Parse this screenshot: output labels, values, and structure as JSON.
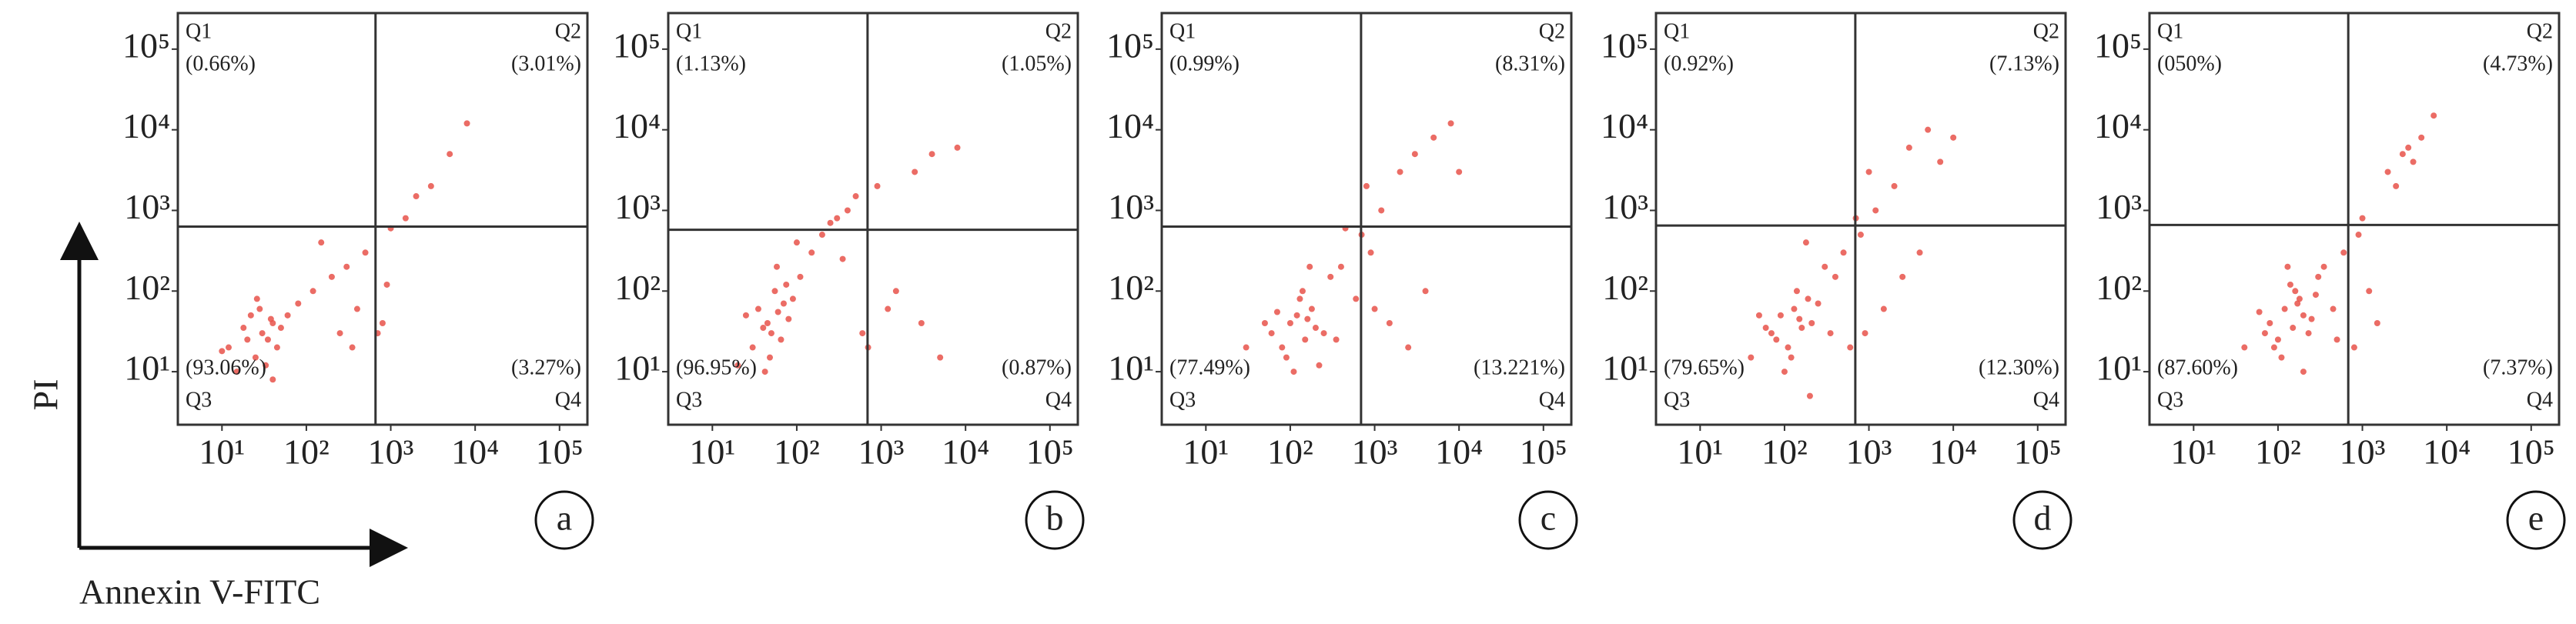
{
  "chart_data": [
    {
      "type": "scatter",
      "panel_label": "a",
      "ylabel": "PI",
      "xlabel": "Annexin V-FITC",
      "color": "#e8524a",
      "log_x": true,
      "log_y": true,
      "xlim": [
        3,
        214000
      ],
      "ylim": [
        2.2,
        280000
      ],
      "xticks": [
        {
          "value": 10,
          "label": "10¹"
        },
        {
          "value": 100,
          "label": "10²"
        },
        {
          "value": 1000,
          "label": "10³"
        },
        {
          "value": 10000,
          "label": "10⁴"
        },
        {
          "value": 100000,
          "label": "10⁵"
        }
      ],
      "yticks": [
        {
          "value": 10,
          "label": "10¹"
        },
        {
          "value": 100,
          "label": "10²"
        },
        {
          "value": 1000,
          "label": "10³"
        },
        {
          "value": 10000,
          "label": "10⁴"
        },
        {
          "value": 100000,
          "label": "10⁵"
        }
      ],
      "gate": [
        660,
        630
      ],
      "quadrants": [
        {
          "name": "Q1",
          "label": "(0.66%)"
        },
        {
          "name": "Q2",
          "label": "(3.01%)"
        },
        {
          "name": "Q3",
          "label": "(93.06%)"
        },
        {
          "name": "Q4",
          "label": "(3.27%)"
        }
      ],
      "x": [
        12,
        18,
        25,
        30,
        35,
        40,
        22,
        15,
        28,
        45,
        50,
        20,
        33,
        38,
        26,
        60,
        80,
        120,
        200,
        300,
        500,
        900,
        1500,
        3000,
        5000,
        800,
        250,
        150,
        40,
        10,
        700,
        2000,
        400,
        1000,
        8000,
        350
      ],
      "y": [
        20,
        35,
        15,
        30,
        25,
        40,
        50,
        10,
        60,
        20,
        35,
        25,
        12,
        45,
        80,
        50,
        70,
        100,
        150,
        200,
        300,
        120,
        800,
        2000,
        5000,
        40,
        30,
        400,
        8,
        18,
        30,
        1500,
        60,
        600,
        12000,
        20
      ]
    },
    {
      "type": "scatter",
      "panel_label": "b",
      "color": "#e8524a",
      "log_x": true,
      "log_y": true,
      "xlim": [
        3,
        214000
      ],
      "ylim": [
        2.2,
        280000
      ],
      "xticks": [
        {
          "value": 10,
          "label": "10¹"
        },
        {
          "value": 100,
          "label": "10²"
        },
        {
          "value": 1000,
          "label": "10³"
        },
        {
          "value": 10000,
          "label": "10⁴"
        },
        {
          "value": 100000,
          "label": "10⁵"
        }
      ],
      "yticks": [
        {
          "value": 10,
          "label": "10¹"
        },
        {
          "value": 100,
          "label": "10²"
        },
        {
          "value": 1000,
          "label": "10³"
        },
        {
          "value": 10000,
          "label": "10⁴"
        },
        {
          "value": 100000,
          "label": "10⁵"
        }
      ],
      "gate": [
        690,
        575
      ],
      "quadrants": [
        {
          "name": "Q1",
          "label": "(1.13%)"
        },
        {
          "name": "Q2",
          "label": "(1.05%)"
        },
        {
          "name": "Q3",
          "label": "(96.95%)"
        },
        {
          "name": "Q4",
          "label": "(0.87%)"
        }
      ],
      "x": [
        30,
        45,
        60,
        50,
        70,
        55,
        40,
        80,
        65,
        35,
        90,
        48,
        75,
        58,
        42,
        110,
        150,
        200,
        300,
        400,
        500,
        1200,
        2500,
        4000,
        8000,
        600,
        3000,
        1500,
        25,
        20,
        700,
        900,
        250,
        100,
        5000,
        350
      ],
      "y": [
        20,
        40,
        55,
        30,
        70,
        100,
        35,
        45,
        25,
        60,
        80,
        15,
        120,
        200,
        10,
        150,
        300,
        500,
        800,
        1000,
        1500,
        60,
        3000,
        5000,
        6000,
        30,
        40,
        100,
        50,
        12,
        20,
        2000,
        700,
        400,
        15,
        250
      ]
    },
    {
      "type": "scatter",
      "panel_label": "c",
      "color": "#e8524a",
      "log_x": true,
      "log_y": true,
      "xlim": [
        3,
        214000
      ],
      "ylim": [
        2.2,
        280000
      ],
      "xticks": [
        {
          "value": 10,
          "label": "10¹"
        },
        {
          "value": 100,
          "label": "10²"
        },
        {
          "value": 1000,
          "label": "10³"
        },
        {
          "value": 10000,
          "label": "10⁴"
        },
        {
          "value": 100000,
          "label": "10⁵"
        }
      ],
      "yticks": [
        {
          "value": 10,
          "label": "10¹"
        },
        {
          "value": 100,
          "label": "10²"
        },
        {
          "value": 1000,
          "label": "10³"
        },
        {
          "value": 10000,
          "label": "10⁴"
        },
        {
          "value": 100000,
          "label": "10⁵"
        }
      ],
      "gate": [
        690,
        630
      ],
      "quadrants": [
        {
          "name": "Q1",
          "label": "(0.99%)"
        },
        {
          "name": "Q2",
          "label": "(8.31%)"
        },
        {
          "name": "Q3",
          "label": "(77.49%)"
        },
        {
          "name": "Q4",
          "label": "(13.221%)"
        }
      ],
      "x": [
        60,
        80,
        100,
        120,
        150,
        180,
        200,
        90,
        130,
        160,
        110,
        140,
        250,
        70,
        300,
        400,
        600,
        900,
        1200,
        2000,
        3000,
        5000,
        8000,
        1500,
        700,
        2500,
        450,
        350,
        50,
        800,
        10000,
        4000,
        1000,
        220,
        170,
        30
      ],
      "y": [
        30,
        20,
        40,
        50,
        25,
        60,
        35,
        15,
        80,
        45,
        10,
        100,
        30,
        55,
        150,
        200,
        80,
        300,
        1000,
        3000,
        5000,
        8000,
        12000,
        40,
        500,
        20,
        600,
        25,
        40,
        2000,
        3000,
        100,
        60,
        12,
        200,
        20
      ]
    },
    {
      "type": "scatter",
      "panel_label": "d",
      "color": "#e8524a",
      "log_x": true,
      "log_y": true,
      "xlim": [
        3,
        214000
      ],
      "ylim": [
        2.2,
        280000
      ],
      "xticks": [
        {
          "value": 10,
          "label": "10¹"
        },
        {
          "value": 100,
          "label": "10²"
        },
        {
          "value": 1000,
          "label": "10³"
        },
        {
          "value": 10000,
          "label": "10⁴"
        },
        {
          "value": 100000,
          "label": "10⁵"
        }
      ],
      "yticks": [
        {
          "value": 10,
          "label": "10¹"
        },
        {
          "value": 100,
          "label": "10²"
        },
        {
          "value": 1000,
          "label": "10³"
        },
        {
          "value": 10000,
          "label": "10⁴"
        },
        {
          "value": 100000,
          "label": "10⁵"
        }
      ],
      "gate": [
        690,
        650
      ],
      "quadrants": [
        {
          "name": "Q1",
          "label": "(0.92%)"
        },
        {
          "name": "Q2",
          "label": "(7.13%)"
        },
        {
          "name": "Q3",
          "label": "(79.65%)"
        },
        {
          "name": "Q4",
          "label": "(12.30%)"
        }
      ],
      "x": [
        70,
        90,
        110,
        130,
        160,
        190,
        210,
        100,
        140,
        80,
        120,
        150,
        250,
        60,
        300,
        500,
        800,
        1200,
        2000,
        3000,
        5000,
        7000,
        1500,
        900,
        4000,
        600,
        400,
        50,
        200,
        10000,
        2500,
        1000,
        350,
        180,
        40,
        700
      ],
      "y": [
        30,
        50,
        20,
        60,
        35,
        80,
        40,
        10,
        100,
        25,
        15,
        45,
        70,
        35,
        200,
        300,
        500,
        1000,
        2000,
        6000,
        10000,
        4000,
        60,
        30,
        300,
        20,
        150,
        50,
        5,
        8000,
        150,
        3000,
        30,
        400,
        15,
        800
      ]
    },
    {
      "type": "scatter",
      "panel_label": "e",
      "color": "#e8524a",
      "log_x": true,
      "log_y": true,
      "xlim": [
        3,
        214000
      ],
      "ylim": [
        2.2,
        280000
      ],
      "xticks": [
        {
          "value": 10,
          "label": "10¹"
        },
        {
          "value": 100,
          "label": "10²"
        },
        {
          "value": 1000,
          "label": "10³"
        },
        {
          "value": 10000,
          "label": "10⁴"
        },
        {
          "value": 100000,
          "label": "10⁵"
        }
      ],
      "yticks": [
        {
          "value": 10,
          "label": "10¹"
        },
        {
          "value": 100,
          "label": "10²"
        },
        {
          "value": 1000,
          "label": "10³"
        },
        {
          "value": 10000,
          "label": "10⁴"
        },
        {
          "value": 100000,
          "label": "10⁵"
        }
      ],
      "gate": [
        680,
        660
      ],
      "quadrants": [
        {
          "name": "Q1",
          "label": "(050%)"
        },
        {
          "name": "Q2",
          "label": "(4.73%)"
        },
        {
          "name": "Q3",
          "label": "(87.60%)"
        },
        {
          "name": "Q4",
          "label": "(7.37%)"
        }
      ],
      "x": [
        80,
        100,
        120,
        150,
        180,
        200,
        230,
        110,
        160,
        90,
        140,
        250,
        70,
        300,
        450,
        600,
        1000,
        2000,
        3000,
        4000,
        5000,
        1500,
        800,
        2500,
        350,
        60,
        200,
        7000,
        1200,
        500,
        130,
        170,
        40,
        900,
        3500,
        280
      ],
      "y": [
        40,
        25,
        60,
        35,
        80,
        50,
        30,
        15,
        100,
        20,
        120,
        45,
        30,
        150,
        60,
        300,
        800,
        3000,
        5000,
        4000,
        8000,
        40,
        20,
        2000,
        200,
        55,
        10,
        15000,
        100,
        25,
        200,
        70,
        20,
        500,
        6000,
        90
      ]
    }
  ]
}
